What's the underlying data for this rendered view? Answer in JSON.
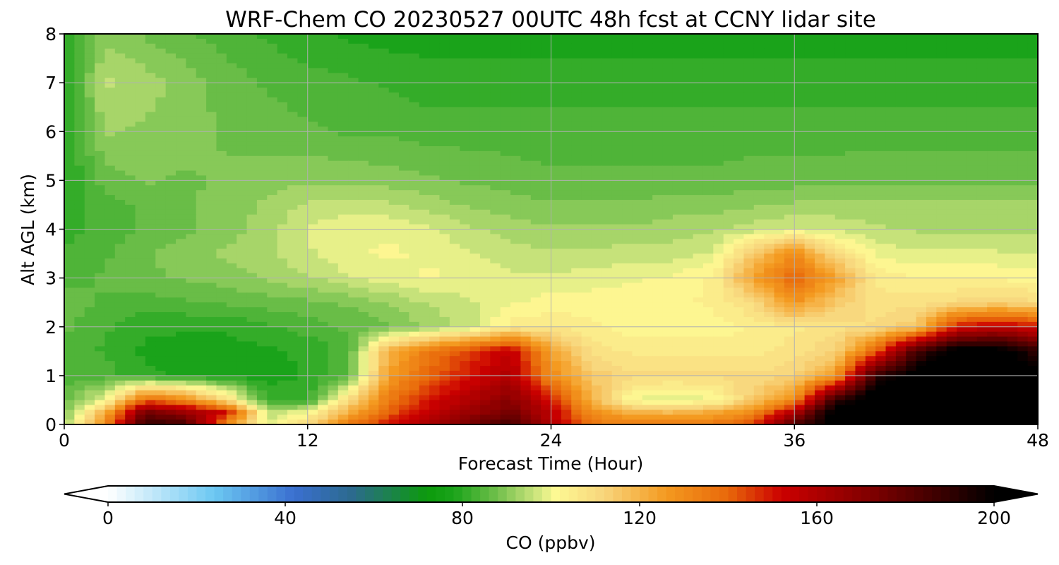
{
  "chart_data": {
    "type": "heatmap",
    "title": "WRF-Chem CO  20230527 00UTC 48h fcst at CCNY lidar site",
    "xlabel": "Forecast Time (Hour)",
    "ylabel": "Alt AGL (km)",
    "xlim": [
      0,
      48
    ],
    "ylim": [
      0,
      8
    ],
    "x_ticks": [
      0,
      12,
      24,
      36,
      48
    ],
    "y_ticks": [
      0,
      1,
      2,
      3,
      4,
      5,
      6,
      7,
      8
    ],
    "grid": true,
    "x_hours": [
      0,
      2,
      4,
      6,
      8,
      10,
      12,
      14,
      16,
      18,
      20,
      22,
      24,
      26,
      28,
      30,
      32,
      34,
      36,
      38,
      40,
      42,
      44,
      46,
      48
    ],
    "z_km": [
      0,
      0.25,
      0.5,
      1,
      1.5,
      2,
      2.5,
      3,
      3.5,
      4,
      4.5,
      5,
      6,
      7,
      8
    ],
    "co_ppbv": [
      [
        92,
        130,
        190,
        185,
        130,
        98,
        110,
        135,
        150,
        160,
        175,
        185,
        160,
        135,
        135,
        135,
        135,
        145,
        185,
        205,
        210,
        210,
        210,
        210,
        205
      ],
      [
        88,
        120,
        175,
        165,
        150,
        95,
        100,
        120,
        140,
        155,
        165,
        175,
        155,
        130,
        120,
        118,
        122,
        130,
        160,
        205,
        210,
        210,
        210,
        210,
        205
      ],
      [
        86,
        100,
        140,
        130,
        110,
        82,
        80,
        110,
        135,
        150,
        160,
        170,
        150,
        120,
        100,
        98,
        100,
        115,
        130,
        190,
        210,
        210,
        210,
        210,
        205
      ],
      [
        84,
        84,
        80,
        79,
        78,
        78,
        80,
        85,
        125,
        140,
        150,
        160,
        130,
        115,
        110,
        110,
        110,
        110,
        112,
        125,
        190,
        205,
        210,
        210,
        205
      ],
      [
        85,
        82,
        79,
        78,
        78,
        79,
        80,
        84,
        120,
        135,
        145,
        155,
        125,
        108,
        106,
        105,
        105,
        105,
        108,
        112,
        140,
        185,
        205,
        205,
        190
      ],
      [
        86,
        83,
        80,
        80,
        80,
        82,
        84,
        86,
        88,
        92,
        96,
        105,
        106,
        104,
        102,
        102,
        102,
        104,
        106,
        108,
        110,
        115,
        150,
        155,
        150
      ],
      [
        87,
        85,
        84,
        85,
        86,
        87,
        88,
        89,
        92,
        95,
        97,
        100,
        102,
        102,
        102,
        103,
        104,
        110,
        128,
        115,
        108,
        108,
        110,
        112,
        110
      ],
      [
        84,
        86,
        88,
        89,
        90,
        92,
        94,
        97,
        99,
        101,
        100,
        98,
        98,
        99,
        100,
        101,
        104,
        125,
        140,
        125,
        106,
        103,
        103,
        103,
        102
      ],
      [
        83,
        85,
        88,
        90,
        92,
        94,
        97,
        100,
        101,
        100,
        98,
        96,
        95,
        95,
        96,
        96,
        98,
        115,
        130,
        110,
        100,
        98,
        98,
        98,
        97
      ],
      [
        81,
        84,
        86,
        88,
        90,
        93,
        98,
        100,
        100,
        98,
        95,
        93,
        92,
        92,
        92,
        93,
        94,
        96,
        98,
        97,
        95,
        94,
        94,
        94,
        94
      ],
      [
        80,
        84,
        86,
        88,
        90,
        92,
        95,
        96,
        95,
        93,
        91,
        90,
        89,
        89,
        89,
        90,
        90,
        91,
        92,
        92,
        92,
        92,
        92,
        92,
        92
      ],
      [
        79,
        87,
        89,
        88,
        89,
        90,
        91,
        91,
        90,
        89,
        88,
        87,
        86,
        86,
        86,
        86,
        86,
        87,
        87,
        87,
        88,
        88,
        88,
        88,
        88
      ],
      [
        79,
        92,
        91,
        90,
        88,
        87,
        86,
        85,
        85,
        84,
        84,
        84,
        84,
        84,
        84,
        84,
        84,
        84,
        84,
        84,
        84,
        84,
        84,
        84,
        84
      ],
      [
        79,
        95,
        93,
        90,
        87,
        85,
        84,
        83,
        82,
        81,
        81,
        81,
        81,
        81,
        81,
        81,
        81,
        81,
        81,
        81,
        81,
        81,
        81,
        81,
        81
      ],
      [
        80,
        90,
        88,
        86,
        84,
        82,
        80,
        79,
        78,
        78,
        78,
        78,
        78,
        78,
        78,
        78,
        78,
        78,
        78,
        78,
        78,
        78,
        78,
        78,
        78
      ]
    ],
    "colorbar": {
      "label": "CO  (ppbv)",
      "min": 0,
      "max": 200,
      "ticks": [
        0,
        40,
        80,
        120,
        160,
        200
      ],
      "extend": "both",
      "colormap": "white-blue-green-yellow-orange-red-black"
    }
  },
  "colors": {
    "cmap_stops": [
      [
        0,
        "#ffffff"
      ],
      [
        24,
        "#6cc8f2"
      ],
      [
        42,
        "#3a6fd0"
      ],
      [
        55,
        "#2c6a8e"
      ],
      [
        72,
        "#0c9a0c"
      ],
      [
        78,
        "#1aa31a"
      ],
      [
        88,
        "#72c04c"
      ],
      [
        96,
        "#c6e27a"
      ],
      [
        101,
        "#fdf993"
      ],
      [
        112,
        "#f8d57c"
      ],
      [
        126,
        "#f49a20"
      ],
      [
        140,
        "#e8680a"
      ],
      [
        152,
        "#cc0000"
      ],
      [
        172,
        "#800000"
      ],
      [
        188,
        "#3a0000"
      ],
      [
        200,
        "#000000"
      ]
    ]
  }
}
